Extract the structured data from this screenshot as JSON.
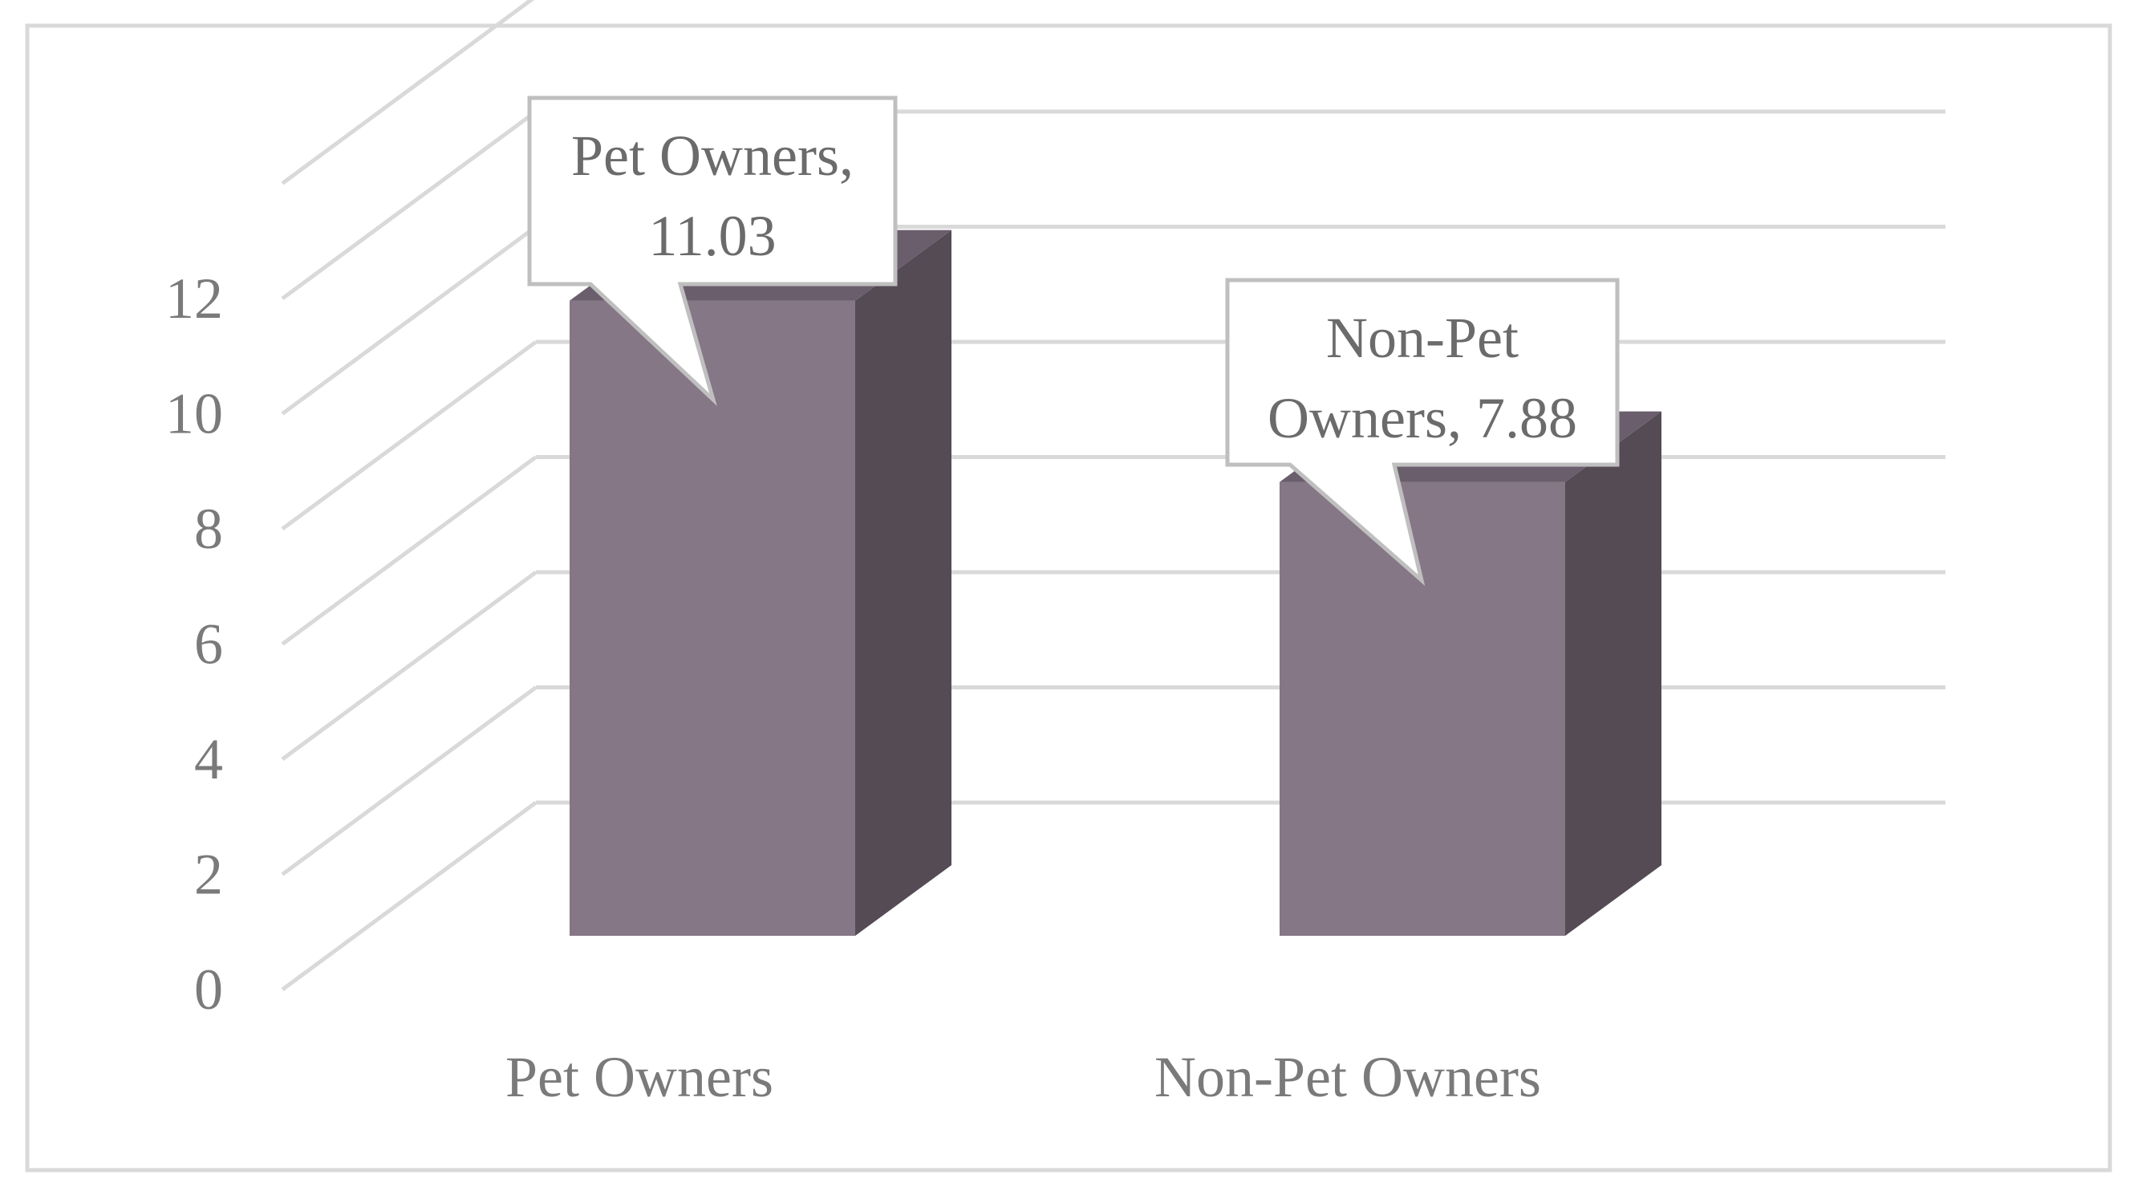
{
  "chart_data": {
    "type": "bar",
    "title": "",
    "xlabel": "",
    "ylabel": "",
    "categories": [
      "Pet Owners",
      "Non-Pet Owners"
    ],
    "values": [
      11.03,
      7.88
    ],
    "data_labels": [
      [
        "Pet Owners,",
        "11.03"
      ],
      [
        "Non-Pet",
        "Owners, 7.88"
      ]
    ],
    "ylim": [
      0,
      14
    ],
    "yticks": [
      0,
      2,
      4,
      6,
      8,
      10,
      12
    ],
    "grid": true,
    "legend": "none",
    "three_d": true,
    "colors": {
      "bar_front": "#857786",
      "bar_side": "#544b55",
      "bar_top": "#6a5e6c",
      "grid": "#d9d9d9",
      "border": "#d9d9d9",
      "text": "#7a7a7a",
      "callout_border": "#bfbfbf",
      "callout_fill": "#ffffff"
    }
  }
}
